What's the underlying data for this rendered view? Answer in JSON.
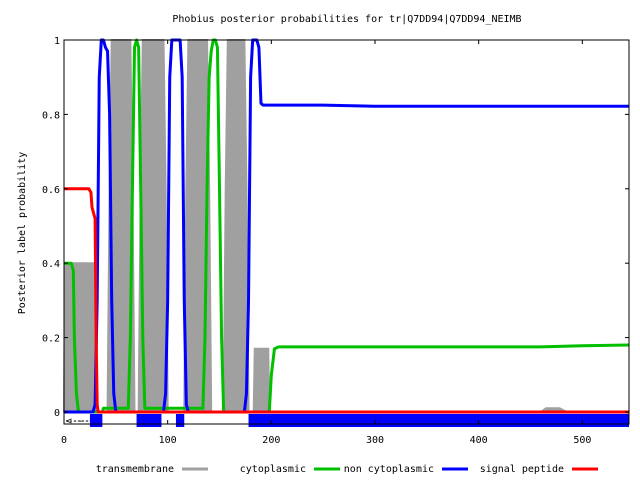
{
  "chart_data": {
    "type": "line",
    "title": "Phobius posterior probabilities for tr|Q7DD94|Q7DD94_NEIMB",
    "xlabel": "",
    "ylabel": "Posterior label probability",
    "xlim": [
      0,
      545
    ],
    "ylim": [
      0,
      1
    ],
    "x_ticks": [
      0,
      100,
      200,
      300,
      400,
      500
    ],
    "y_ticks": [
      0,
      0.2,
      0.4,
      0.6,
      0.8,
      1
    ],
    "y_tick_labels": [
      "0",
      "0.2",
      "0.4",
      "0.6",
      "0.8",
      "1"
    ],
    "legend_position": "bottom",
    "series": [
      {
        "name": "transmembrane",
        "color": "#a0a0a0",
        "style": "filled",
        "points": [
          [
            0,
            0
          ],
          [
            1,
            0.4
          ],
          [
            6,
            0.4
          ],
          [
            9,
            0.4
          ],
          [
            13,
            0.4
          ],
          [
            15,
            0.4
          ],
          [
            20,
            0.4
          ],
          [
            24,
            0.4
          ],
          [
            26,
            0.4
          ],
          [
            29,
            0.4
          ],
          [
            30,
            0.2
          ],
          [
            31,
            0
          ],
          [
            42,
            0
          ],
          [
            44,
            0.6
          ],
          [
            46,
            1
          ],
          [
            48,
            1
          ],
          [
            50,
            1
          ],
          [
            52,
            1
          ],
          [
            54,
            1
          ],
          [
            56,
            1
          ],
          [
            58,
            1
          ],
          [
            60,
            1
          ],
          [
            62,
            1
          ],
          [
            64,
            1
          ],
          [
            66,
            0.6
          ],
          [
            68,
            0
          ],
          [
            72,
            0
          ],
          [
            74,
            0.6
          ],
          [
            76,
            1
          ],
          [
            78,
            1
          ],
          [
            80,
            1
          ],
          [
            82,
            1
          ],
          [
            84,
            1
          ],
          [
            86,
            1
          ],
          [
            88,
            1
          ],
          [
            90,
            1
          ],
          [
            92,
            1
          ],
          [
            94,
            1
          ],
          [
            96,
            1
          ],
          [
            98,
            0.6
          ],
          [
            100,
            0
          ],
          [
            116,
            0
          ],
          [
            118,
            0.6
          ],
          [
            120,
            1
          ],
          [
            122,
            1
          ],
          [
            124,
            1
          ],
          [
            126,
            1
          ],
          [
            128,
            1
          ],
          [
            130,
            1
          ],
          [
            132,
            1
          ],
          [
            134,
            1
          ],
          [
            136,
            1
          ],
          [
            138,
            1
          ],
          [
            140,
            0.6
          ],
          [
            142,
            0
          ],
          [
            154,
            0
          ],
          [
            156,
            0.6
          ],
          [
            158,
            1
          ],
          [
            160,
            1
          ],
          [
            162,
            1
          ],
          [
            164,
            1
          ],
          [
            166,
            1
          ],
          [
            168,
            1
          ],
          [
            170,
            1
          ],
          [
            172,
            1
          ],
          [
            174,
            1
          ],
          [
            176,
            0.6
          ],
          [
            178,
            0
          ],
          [
            183,
            0
          ],
          [
            184,
            0.17
          ],
          [
            186,
            0.17
          ],
          [
            190,
            0.17
          ],
          [
            194,
            0.17
          ],
          [
            197,
            0.17
          ],
          [
            198,
            0
          ],
          [
            460,
            0
          ],
          [
            465,
            0.01
          ],
          [
            478,
            0.01
          ],
          [
            485,
            0
          ],
          [
            545,
            0
          ]
        ]
      },
      {
        "name": "cytoplasmic",
        "color": "#00c000",
        "style": "line",
        "points": [
          [
            0,
            0.4
          ],
          [
            7,
            0.4
          ],
          [
            9,
            0.38
          ],
          [
            10,
            0.2
          ],
          [
            12,
            0.05
          ],
          [
            14,
            0
          ],
          [
            37,
            0
          ],
          [
            38,
            0.01
          ],
          [
            62,
            0.01
          ],
          [
            64,
            0.2
          ],
          [
            66,
            0.6
          ],
          [
            68,
            0.98
          ],
          [
            70,
            1
          ],
          [
            72,
            0.98
          ],
          [
            74,
            0.6
          ],
          [
            76,
            0.2
          ],
          [
            78,
            0.01
          ],
          [
            134,
            0.01
          ],
          [
            136,
            0.2
          ],
          [
            138,
            0.6
          ],
          [
            140,
            0.9
          ],
          [
            142,
            0.97
          ],
          [
            144,
            1
          ],
          [
            146,
            1
          ],
          [
            148,
            0.98
          ],
          [
            150,
            0.6
          ],
          [
            152,
            0.2
          ],
          [
            154,
            0
          ],
          [
            198,
            0
          ],
          [
            200,
            0.1
          ],
          [
            203,
            0.17
          ],
          [
            207,
            0.175
          ],
          [
            300,
            0.175
          ],
          [
            400,
            0.175
          ],
          [
            460,
            0.175
          ],
          [
            500,
            0.178
          ],
          [
            545,
            0.18
          ]
        ]
      },
      {
        "name": "non cytoplasmic",
        "color": "#0000ff",
        "style": "line",
        "points": [
          [
            0,
            0
          ],
          [
            28,
            0
          ],
          [
            30,
            0.02
          ],
          [
            32,
            0.3
          ],
          [
            34,
            0.9
          ],
          [
            36,
            1
          ],
          [
            38,
            1
          ],
          [
            40,
            0.98
          ],
          [
            42,
            0.97
          ],
          [
            44,
            0.8
          ],
          [
            46,
            0.3
          ],
          [
            48,
            0.05
          ],
          [
            50,
            0
          ],
          [
            96,
            0
          ],
          [
            98,
            0.05
          ],
          [
            100,
            0.3
          ],
          [
            102,
            0.9
          ],
          [
            104,
            1
          ],
          [
            110,
            1
          ],
          [
            112,
            1
          ],
          [
            114,
            0.9
          ],
          [
            116,
            0.3
          ],
          [
            118,
            0.02
          ],
          [
            120,
            0
          ],
          [
            174,
            0
          ],
          [
            176,
            0.05
          ],
          [
            178,
            0.3
          ],
          [
            180,
            0.9
          ],
          [
            182,
            1
          ],
          [
            186,
            1
          ],
          [
            188,
            0.98
          ],
          [
            190,
            0.83
          ],
          [
            192,
            0.825
          ],
          [
            250,
            0.825
          ],
          [
            300,
            0.822
          ],
          [
            400,
            0.822
          ],
          [
            500,
            0.822
          ],
          [
            545,
            0.822
          ]
        ]
      },
      {
        "name": "signal peptide",
        "color": "#ff0000",
        "style": "line",
        "points": [
          [
            0,
            0.6
          ],
          [
            24,
            0.6
          ],
          [
            26,
            0.59
          ],
          [
            27,
            0.55
          ],
          [
            29,
            0.53
          ],
          [
            30,
            0.52
          ],
          [
            31,
            0.2
          ],
          [
            32,
            0.02
          ],
          [
            33,
            0
          ],
          [
            200,
            0
          ],
          [
            545,
            0
          ]
        ]
      }
    ],
    "topology_bar": {
      "color": "#0000ff",
      "arrow_label": "<-----",
      "segments": [
        [
          25,
          37
        ],
        [
          70,
          94
        ],
        [
          108,
          116
        ],
        [
          178,
          545
        ]
      ]
    },
    "x_axis_labels": [
      "0",
      "100",
      "200",
      "300",
      "400",
      "500"
    ]
  }
}
